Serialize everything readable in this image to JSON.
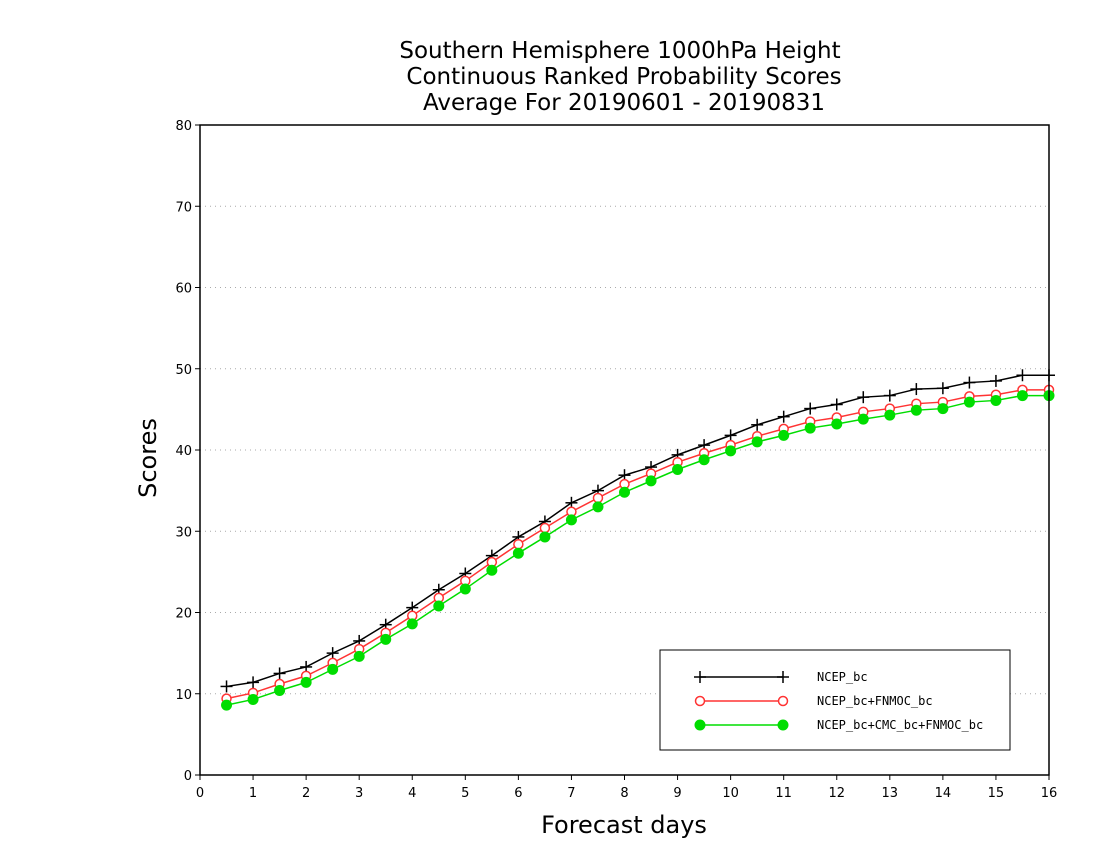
{
  "chart_data": {
    "type": "line",
    "title": [
      "Southern Hemisphere 1000hPa Height",
      "Continuous Ranked Probability Scores",
      "Average For 20190601 - 20190831"
    ],
    "xlabel": "Forecast days",
    "ylabel": "Scores",
    "xlim": [
      0,
      16
    ],
    "ylim": [
      0,
      80
    ],
    "xticks": [
      0,
      1,
      2,
      3,
      4,
      5,
      6,
      7,
      8,
      9,
      10,
      11,
      12,
      13,
      14,
      15,
      16
    ],
    "yticks": [
      0,
      10,
      20,
      30,
      40,
      50,
      60,
      70,
      80
    ],
    "grid": "horizontal dotted",
    "legend_position": "bottom-right",
    "x": [
      0.5,
      1,
      1.5,
      2,
      2.5,
      3,
      3.5,
      4,
      4.5,
      5,
      5.5,
      6,
      6.5,
      7,
      7.5,
      8,
      8.5,
      9,
      9.5,
      10,
      10.5,
      11,
      11.5,
      12,
      12.5,
      13,
      13.5,
      14,
      14.5,
      15,
      15.5,
      16
    ],
    "series": [
      {
        "name": "NCEP_bc",
        "color": "#000000",
        "marker": "plus",
        "values": [
          10.9,
          11.4,
          12.5,
          13.3,
          15.0,
          16.5,
          18.5,
          20.6,
          22.8,
          24.8,
          27.0,
          29.3,
          31.2,
          33.5,
          35.0,
          36.9,
          37.9,
          39.4,
          40.6,
          41.8,
          43.1,
          44.1,
          45.1,
          45.6,
          46.5,
          46.7,
          47.5,
          47.6,
          48.3,
          48.5,
          49.2,
          49.2
        ]
      },
      {
        "name": "NCEP_bc+FNMOC_bc",
        "color": "#ff3333",
        "marker": "open-circle",
        "values": [
          9.4,
          10.1,
          11.2,
          12.2,
          13.8,
          15.5,
          17.5,
          19.6,
          21.8,
          23.9,
          26.2,
          28.4,
          30.4,
          32.4,
          34.1,
          35.8,
          37.1,
          38.5,
          39.6,
          40.6,
          41.7,
          42.6,
          43.5,
          44.0,
          44.7,
          45.1,
          45.7,
          45.9,
          46.6,
          46.8,
          47.4,
          47.4
        ]
      },
      {
        "name": "NCEP_bc+CMC_bc+FNMOC_bc",
        "color": "#00dd00",
        "marker": "filled-circle",
        "values": [
          8.6,
          9.3,
          10.4,
          11.4,
          13.0,
          14.6,
          16.7,
          18.6,
          20.8,
          22.9,
          25.2,
          27.3,
          29.3,
          31.4,
          33.0,
          34.8,
          36.2,
          37.6,
          38.8,
          39.9,
          41.0,
          41.8,
          42.7,
          43.2,
          43.8,
          44.3,
          44.9,
          45.1,
          45.9,
          46.1,
          46.7,
          46.7
        ]
      }
    ]
  }
}
